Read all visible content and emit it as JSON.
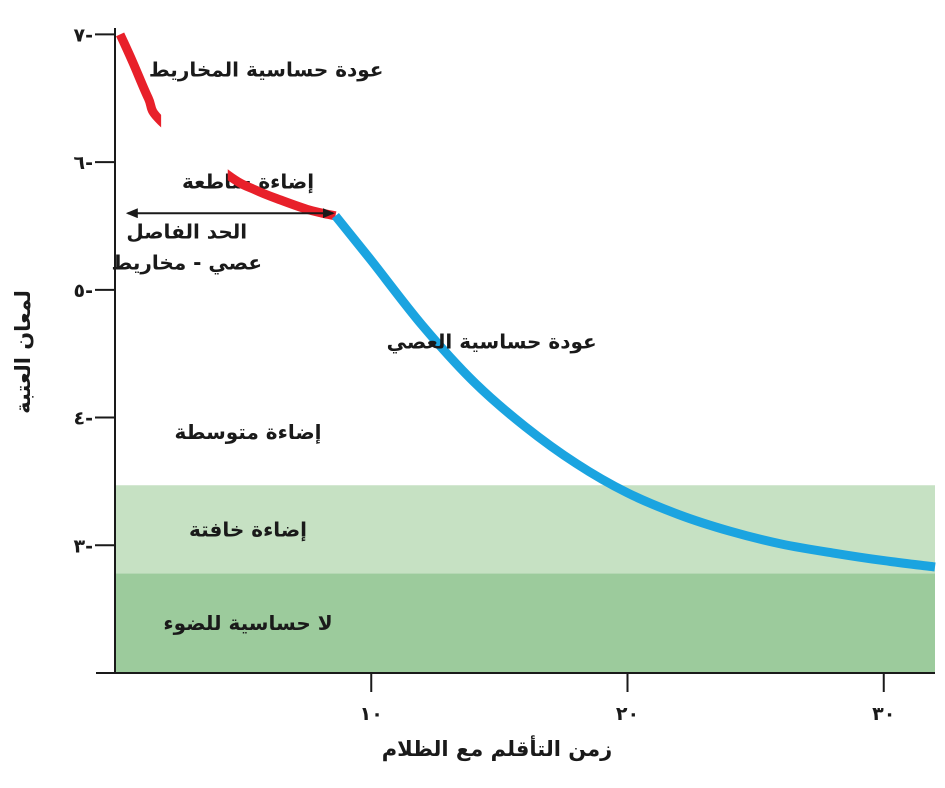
{
  "chart_data": {
    "type": "line",
    "xlabel": "زمن التأقلم مع الظلام",
    "ylabel": "لمعان العتبة",
    "xlim": [
      0,
      32
    ],
    "ylim": [
      2,
      7.05
    ],
    "x_ticks": [
      {
        "value": 10,
        "label": "١٠"
      },
      {
        "value": 20,
        "label": "٢٠"
      },
      {
        "value": 30,
        "label": "٣٠"
      }
    ],
    "y_ticks": [
      {
        "value": 3,
        "label": "٣-"
      },
      {
        "value": 4,
        "label": "٤-"
      },
      {
        "value": 5,
        "label": "٥-"
      },
      {
        "value": 6,
        "label": "٦-"
      },
      {
        "value": 7,
        "label": "٧-"
      }
    ],
    "bands": [
      {
        "label": "لا حساسية للضوء",
        "y_from": 2,
        "y_to": 2.78,
        "color": "#9ccb9c"
      },
      {
        "label": "إضاءة خافتة",
        "y_from": 2.78,
        "y_to": 3.47,
        "color": "#c6e1c3"
      },
      {
        "label": "إضاءة متوسطة",
        "y_from": 3.47,
        "y_to": 4.3,
        "color": "#ffffff"
      },
      {
        "label": "إضاءة ساطعة",
        "y_from": 5.3,
        "y_to": 6.4,
        "color": "#ffffff"
      }
    ],
    "series": [
      {
        "label": "عودة حساسية المخاريط",
        "color": "#e8202a",
        "x": [
          0.2,
          0.7,
          1.3,
          1.8,
          4.4,
          5.5,
          6.5,
          7.5,
          8.1,
          8.6
        ],
        "y": [
          7.0,
          6.78,
          6.5,
          6.32,
          5.9,
          5.78,
          5.7,
          5.63,
          5.6,
          5.58
        ]
      },
      {
        "label": "عودة حساسية العصي",
        "color": "#1ba4e0",
        "x": [
          8.6,
          10,
          12,
          14,
          16,
          18,
          20,
          22,
          24,
          26,
          28,
          30,
          32
        ],
        "y": [
          5.58,
          5.23,
          4.72,
          4.28,
          3.93,
          3.64,
          3.41,
          3.24,
          3.11,
          3.01,
          2.94,
          2.88,
          2.83
        ]
      }
    ],
    "annotations": [
      {
        "text": "الحد الفاصل",
        "x": 2.8,
        "y": 5.4
      },
      {
        "text": "عصي - مخاريط",
        "x": 2.8,
        "y": 5.16
      },
      {
        "text": "عودة حساسية المخاريط",
        "x": 5.9,
        "y": 6.67
      },
      {
        "text": "عودة حساسية العصي",
        "x": 14.7,
        "y": 4.54
      }
    ],
    "boundary_arrow": {
      "x_from": 0.5,
      "x_to": 8.5,
      "y": 5.6
    }
  }
}
